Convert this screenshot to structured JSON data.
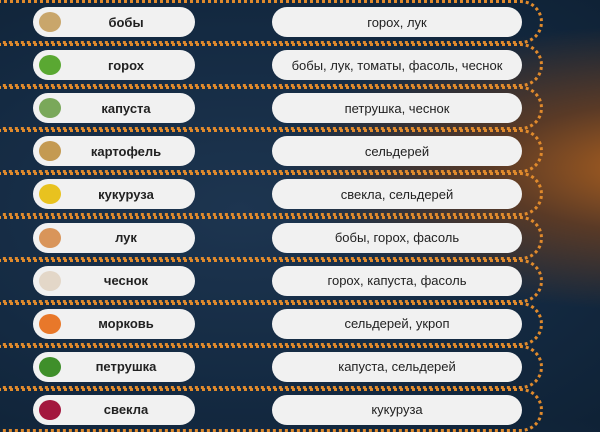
{
  "rows": [
    {
      "plant": "бобы",
      "incompatible": "горох, лук",
      "icon": "beans-icon",
      "color": "#c9a66b"
    },
    {
      "plant": "горох",
      "incompatible": "бобы, лук, томаты, фасоль, чеснок",
      "icon": "peas-icon",
      "color": "#5aa832"
    },
    {
      "plant": "капуста",
      "incompatible": "петрушка, чеснок",
      "icon": "cabbage-icon",
      "color": "#7aa85a"
    },
    {
      "plant": "картофель",
      "incompatible": "сельдерей",
      "icon": "potato-icon",
      "color": "#c49a52"
    },
    {
      "plant": "кукуруза",
      "incompatible": "свекла, сельдерей",
      "icon": "corn-icon",
      "color": "#e8c21f"
    },
    {
      "plant": "лук",
      "incompatible": "бобы, горох, фасоль",
      "icon": "onion-icon",
      "color": "#d9955a"
    },
    {
      "plant": "чеснок",
      "incompatible": "горох, капуста, фасоль",
      "icon": "garlic-icon",
      "color": "#e3d7c8"
    },
    {
      "plant": "морковь",
      "incompatible": "сельдерей, укроп",
      "icon": "carrot-icon",
      "color": "#e8782a"
    },
    {
      "plant": "петрушка",
      "incompatible": "капуста, сельдерей",
      "icon": "parsley-icon",
      "color": "#3f8f2a"
    },
    {
      "plant": "свекла",
      "incompatible": "кукуруза",
      "icon": "beet-icon",
      "color": "#a3173e"
    }
  ]
}
